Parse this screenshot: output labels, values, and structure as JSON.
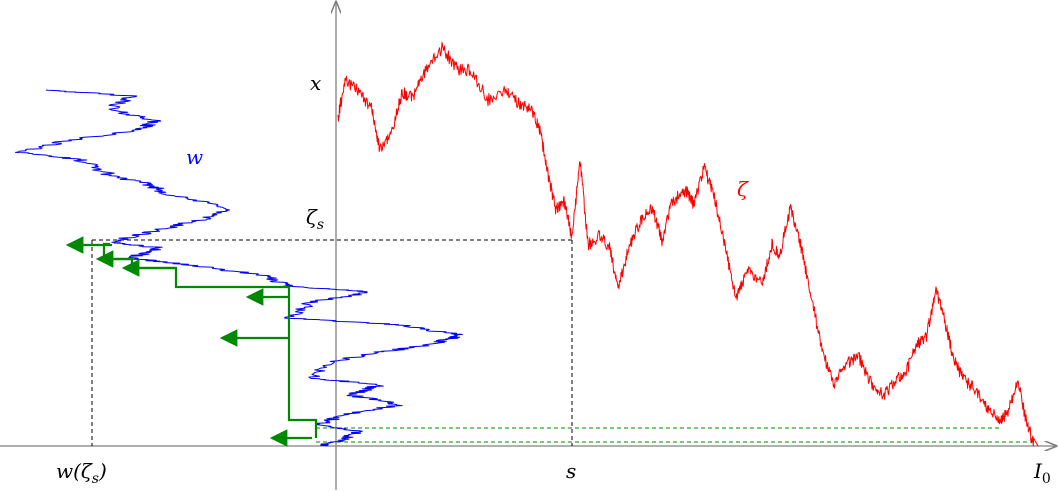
{
  "labels": {
    "x": "x",
    "zeta_s": "ζ",
    "zeta_s_sub": "s",
    "s": "s",
    "w_of_zeta": "w(ζ",
    "w_of_zeta_sub": "s",
    "w_of_zeta_close": ")",
    "I0": "I",
    "I0_sub": "0",
    "w": "w",
    "zeta": "ζ"
  },
  "colors": {
    "axis": "#808080",
    "zeta_path": "#ff0000",
    "w_path": "#0000ff",
    "green": "#008800",
    "dashed": "#000000"
  }
}
